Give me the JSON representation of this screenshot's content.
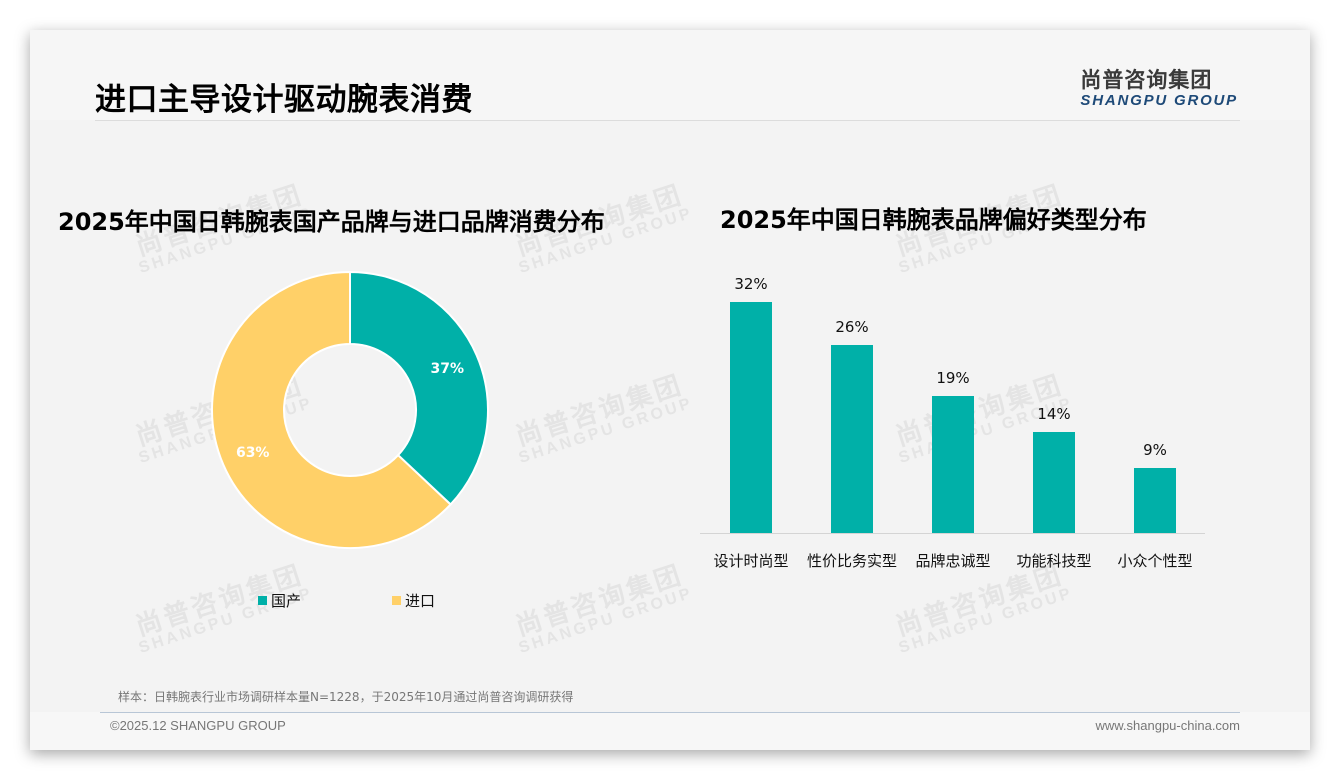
{
  "page": {
    "title": "进口主导设计驱动腕表消费",
    "logo_cn": "尚普咨询集团",
    "logo_en": "SHANGPU GROUP",
    "watermark_cn": "尚普咨询集团",
    "watermark_en": "SHANGPU GROUP"
  },
  "colors": {
    "teal": "#00b0a8",
    "yellow": "#ffd068",
    "logo_blue": "#1e4a78"
  },
  "chart_data": [
    {
      "type": "pie",
      "variant": "donut",
      "title": "2025年中国日韩腕表国产品牌与进口品牌消费分布",
      "categories": [
        "国产",
        "进口"
      ],
      "values": [
        37,
        63
      ],
      "labels": [
        "37%",
        "63%"
      ],
      "colors": [
        "#00b0a8",
        "#ffd068"
      ],
      "legend_position": "bottom"
    },
    {
      "type": "bar",
      "title": "2025年中国日韩腕表品牌偏好类型分布",
      "categories": [
        "设计时尚型",
        "性价比务实型",
        "品牌忠诚型",
        "功能科技型",
        "小众个性型"
      ],
      "values": [
        32,
        26,
        19,
        14,
        9
      ],
      "labels": [
        "32%",
        "26%",
        "19%",
        "14%",
        "9%"
      ],
      "color": "#00b0a8",
      "xlabel": "",
      "ylabel": "",
      "ylim": [
        0,
        35
      ],
      "grid": false,
      "legend_position": "none"
    }
  ],
  "footer": {
    "note": "样本：日韩腕表行业市场调研样本量N=1228，于2025年10月通过尚普咨询调研获得",
    "copyright": "©2025.12 SHANGPU GROUP",
    "website": "www.shangpu-china.com"
  }
}
